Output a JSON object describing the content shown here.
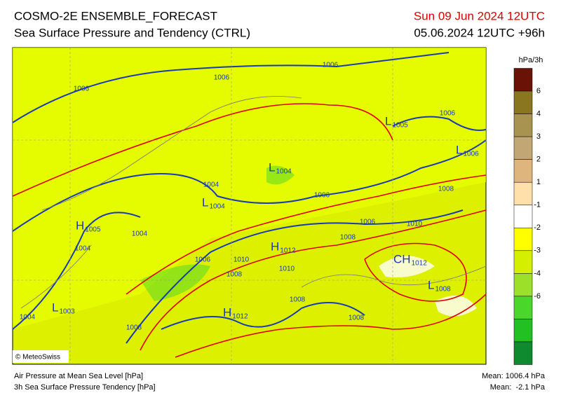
{
  "header": {
    "title": "COSMO-2E ENSEMBLE_FORECAST",
    "subtitle": "Sea Surface Pressure and Tendency (CTRL)",
    "valid_time": "Sun 09 Jun 2024 12UTC",
    "run_time": "05.06.2024 12UTC +96h"
  },
  "map": {
    "isobar_labels": [
      1006,
      1006,
      1006,
      1006,
      1004,
      1006,
      1006,
      1008,
      1010,
      1004,
      1004,
      1008,
      1006,
      1010,
      1010,
      1008,
      1008,
      1004,
      1008,
      1008
    ],
    "centers": [
      {
        "letter": "L",
        "pressure": 1005
      },
      {
        "letter": "L",
        "pressure": 1006
      },
      {
        "letter": "L",
        "pressure": 1004
      },
      {
        "letter": "L",
        "pressure": 1004
      },
      {
        "letter": "H",
        "pressure": 1005
      },
      {
        "letter": "H",
        "pressure": 1012
      },
      {
        "letter": "CH",
        "pressure": 1012
      },
      {
        "letter": "L",
        "pressure": 1008
      },
      {
        "letter": "L",
        "pressure": 1003
      },
      {
        "letter": "H",
        "pressure": 1012
      }
    ],
    "credit": "© MeteoSwiss"
  },
  "colorbar": {
    "unit": "hPa/3h",
    "ticks": [
      6,
      4,
      3,
      2,
      1,
      -1,
      -2,
      -3,
      -4,
      -6
    ],
    "colors": [
      "#6b1206",
      "#8a7520",
      "#a89350",
      "#c2a673",
      "#dfb57e",
      "#ffe0aa",
      "#ffffff",
      "#ffff00",
      "#d4f000",
      "#9de02a",
      "#4bd62b",
      "#22c022",
      "#0f8a2e"
    ]
  },
  "footer": {
    "left": [
      "Air Pressure at Mean Sea Level [hPa]",
      "3h Sea Surface Pressure Tendency [hPa]"
    ],
    "right": [
      "Mean: 1006.4 hPa",
      "Mean:  -2.1 hPa"
    ]
  }
}
